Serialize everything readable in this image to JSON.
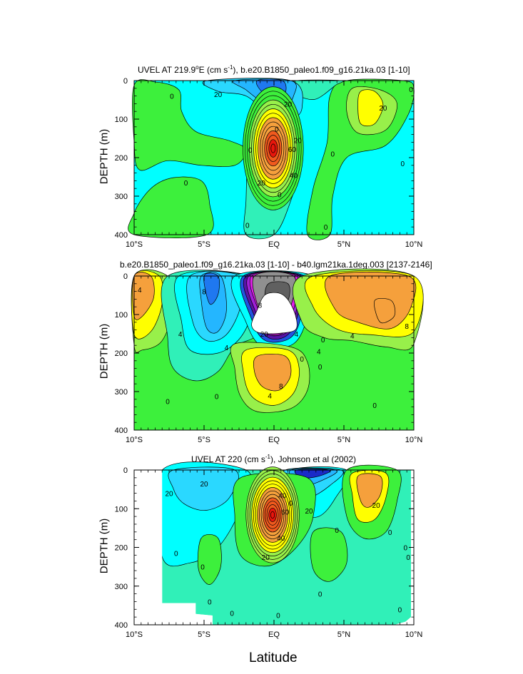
{
  "figure": {
    "x_axis_label": "Latitude",
    "colors": {
      "red": "#e8160c",
      "orange_red": "#f05a1e",
      "orange": "#f5a03c",
      "yellow": "#ffff00",
      "light_green": "#98f04a",
      "green": "#3df03c",
      "aqua_green": "#30f0b8",
      "cyan": "#00ffff",
      "light_blue": "#2ad8ff",
      "sky_blue": "#24b6ff",
      "blue": "#1f78f0",
      "mid_blue": "#2352e0",
      "royal_blue": "#1a2ac8",
      "dark_blue": "#101e9c",
      "violet": "#5a12a8",
      "purple": "#a020d8",
      "magenta": "#e020e8",
      "gray": "#909090",
      "dark_gray": "#606060",
      "white": "#ffffff",
      "contour_line": "#000000"
    }
  },
  "chart_data": [
    {
      "type": "heatmap",
      "panel": "top",
      "title_pre": "UVEL AT 219.9",
      "title_sup1": "o",
      "title_mid": "E (cm s",
      "title_sup2": "-1",
      "title_post": "), b.e20.B1850_paleo1.f09_g16.21ka.03 [1-10]",
      "xlabel": "",
      "ylabel": "DEPTH (m)",
      "xlim": [
        -10,
        10
      ],
      "ylim": [
        400,
        0
      ],
      "x_ticks": [
        -10,
        -5,
        0,
        5,
        10
      ],
      "x_tick_labels": [
        "10°S",
        "5°S",
        "EQ",
        "5°N",
        "10°N"
      ],
      "y_ticks": [
        0,
        100,
        200,
        300,
        400
      ],
      "y_tick_labels": [
        "0",
        "100",
        "200",
        "300",
        "400"
      ],
      "contour_labels": [
        {
          "text": "0",
          "x": -7.3,
          "y": 40
        },
        {
          "text": "20",
          "x": -4.0,
          "y": 35
        },
        {
          "text": "20",
          "x": 1.0,
          "y": 60
        },
        {
          "text": "0",
          "x": 0.2,
          "y": 125
        },
        {
          "text": "20",
          "x": 1.7,
          "y": 155
        },
        {
          "text": "60",
          "x": 1.3,
          "y": 178
        },
        {
          "text": "40",
          "x": 1.4,
          "y": 245
        },
        {
          "text": "20",
          "x": -0.9,
          "y": 265
        },
        {
          "text": "0",
          "x": -1.7,
          "y": 180
        },
        {
          "text": "20",
          "x": 7.8,
          "y": 70
        },
        {
          "text": "0",
          "x": 9.8,
          "y": 22
        },
        {
          "text": "0",
          "x": 4.2,
          "y": 190
        },
        {
          "text": "0",
          "x": 9.2,
          "y": 215
        },
        {
          "text": "0",
          "x": -6.3,
          "y": 265
        },
        {
          "text": "0",
          "x": 0.4,
          "y": 295
        },
        {
          "text": "0",
          "x": -1.9,
          "y": 375
        },
        {
          "text": "0",
          "x": 3.7,
          "y": 380
        }
      ]
    },
    {
      "type": "heatmap",
      "panel": "middle",
      "title": "b.e20.B1850_paleo1.f09_g16.21ka.03 [1-10] - b40.lgm21ka.1deg.003 [2137-2146]",
      "xlabel": "",
      "ylabel": "DEPTH (m)",
      "xlim": [
        -10,
        10
      ],
      "ylim": [
        400,
        0
      ],
      "x_ticks": [
        -10,
        -5,
        0,
        5,
        10
      ],
      "x_tick_labels": [
        "10°S",
        "5°S",
        "EQ",
        "5°N",
        "10°N"
      ],
      "y_ticks": [
        0,
        100,
        200,
        300,
        400
      ],
      "y_tick_labels": [
        "0",
        "100",
        "200",
        "300",
        "400"
      ],
      "contour_labels": [
        {
          "text": "4",
          "x": -9.6,
          "y": 35
        },
        {
          "text": "8",
          "x": -5.0,
          "y": 40
        },
        {
          "text": "4",
          "x": -6.7,
          "y": 150
        },
        {
          "text": "4",
          "x": -3.4,
          "y": 185
        },
        {
          "text": "8",
          "x": -1.0,
          "y": 75
        },
        {
          "text": "20",
          "x": -0.7,
          "y": 150
        },
        {
          "text": "4",
          "x": 1.6,
          "y": 150
        },
        {
          "text": "0",
          "x": 3.5,
          "y": 165
        },
        {
          "text": "4",
          "x": 5.6,
          "y": 155
        },
        {
          "text": "8",
          "x": 9.5,
          "y": 130
        },
        {
          "text": "0",
          "x": 2.0,
          "y": 215
        },
        {
          "text": "4",
          "x": 3.2,
          "y": 195
        },
        {
          "text": "8",
          "x": 0.5,
          "y": 285
        },
        {
          "text": "4",
          "x": -0.3,
          "y": 310
        },
        {
          "text": "0",
          "x": -7.6,
          "y": 325
        },
        {
          "text": "0",
          "x": 3.3,
          "y": 235
        },
        {
          "text": "0",
          "x": -4.1,
          "y": 312
        },
        {
          "text": "0",
          "x": 7.2,
          "y": 335
        }
      ]
    },
    {
      "type": "heatmap",
      "panel": "bottom",
      "title_pre": "UVEL AT 220 (cm s",
      "title_sup": "-1",
      "title_post": "), Johnson et al (2002)",
      "xlabel": "",
      "ylabel": "DEPTH (m)",
      "xlim": [
        -10,
        10
      ],
      "ylim": [
        400,
        0
      ],
      "x_ticks": [
        -10,
        -5,
        0,
        5,
        10
      ],
      "x_tick_labels": [
        "10°S",
        "5°S",
        "EQ",
        "5°N",
        "10°N"
      ],
      "y_ticks": [
        0,
        100,
        200,
        300,
        400
      ],
      "y_tick_labels": [
        "0",
        "100",
        "200",
        "300",
        "400"
      ],
      "contour_labels": [
        {
          "text": "20",
          "x": -7.5,
          "y": 60
        },
        {
          "text": "20",
          "x": -5.0,
          "y": 35
        },
        {
          "text": "0",
          "x": -7.0,
          "y": 215
        },
        {
          "text": "0",
          "x": -5.1,
          "y": 250
        },
        {
          "text": "40",
          "x": 0.6,
          "y": 65
        },
        {
          "text": "0",
          "x": 1.2,
          "y": 85
        },
        {
          "text": "60",
          "x": 0.8,
          "y": 108
        },
        {
          "text": "40",
          "x": 0.5,
          "y": 175
        },
        {
          "text": "20",
          "x": -0.6,
          "y": 225
        },
        {
          "text": "20",
          "x": 2.5,
          "y": 105
        },
        {
          "text": "0",
          "x": 4.5,
          "y": 155
        },
        {
          "text": "20",
          "x": 7.3,
          "y": 90
        },
        {
          "text": "0",
          "x": 8.3,
          "y": 160
        },
        {
          "text": "0",
          "x": 9.4,
          "y": 200
        },
        {
          "text": "0",
          "x": 9.6,
          "y": 225
        },
        {
          "text": "0",
          "x": 3.3,
          "y": 320
        },
        {
          "text": "0",
          "x": -4.6,
          "y": 340
        },
        {
          "text": "0",
          "x": -3.0,
          "y": 370
        },
        {
          "text": "0",
          "x": 0.3,
          "y": 375
        },
        {
          "text": "0",
          "x": 9.0,
          "y": 360
        }
      ]
    }
  ]
}
